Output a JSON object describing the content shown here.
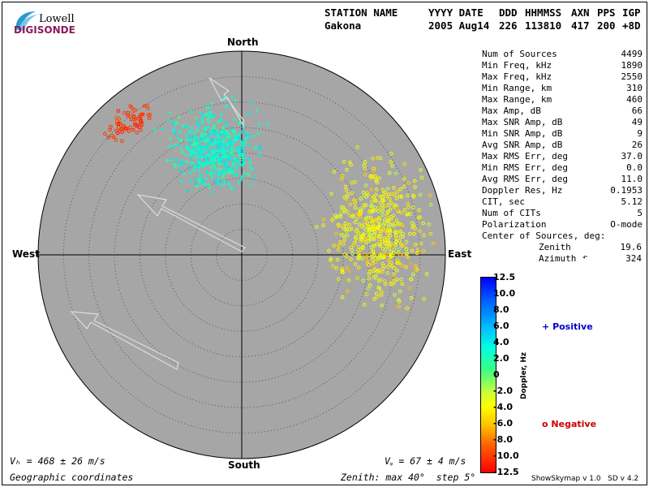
{
  "logo": {
    "top": "Lowell",
    "bottom": "DIGISONDE"
  },
  "header": {
    "labels": [
      "STATION NAME",
      "YYYY DATE",
      "DDD",
      "HHMMSS",
      "AXN",
      "PPS",
      "IGP"
    ],
    "values": [
      "Gakona",
      "2005 Aug14",
      "226",
      "113810",
      "417",
      "200",
      "+8D"
    ]
  },
  "compass": {
    "north": "North",
    "south": "South",
    "east": "East",
    "west": "West"
  },
  "stats": [
    {
      "label": "Num of Sources",
      "value": "4499"
    },
    {
      "label": "Min Freq, kHz",
      "value": "1890"
    },
    {
      "label": "Max Freq, kHz",
      "value": "2550"
    },
    {
      "label": "Min Range, km",
      "value": "310"
    },
    {
      "label": "Max Range, km",
      "value": "460"
    },
    {
      "label": "Max Amp, dB",
      "value": "66"
    },
    {
      "label": "Max SNR Amp, dB",
      "value": "49"
    },
    {
      "label": "Min SNR Amp, dB",
      "value": "9"
    },
    {
      "label": "Avg SNR Amp, dB",
      "value": "26"
    },
    {
      "label": "Max RMS Err, deg",
      "value": "37.0"
    },
    {
      "label": "Min RMS Err, deg",
      "value": "0.0"
    },
    {
      "label": "Avg RMS Err, deg",
      "value": "11.0"
    },
    {
      "label": "Doppler Res, Hz",
      "value": "0.1953"
    },
    {
      "label": "CIT, sec",
      "value": "5.12"
    },
    {
      "label": "Num of CITs",
      "value": "5"
    },
    {
      "label": "Polarization",
      "value": "O-mode"
    }
  ],
  "center": {
    "title": "Center of Sources, deg:",
    "zenith_label": "Zenith",
    "zenith_value": "19.6",
    "azimuth_label": "Azimuth",
    "azimuth_value": "324"
  },
  "colorbar": {
    "ticks": [
      "12.5",
      "10.0",
      "8.0",
      "6.0",
      "4.0",
      "2.0",
      "0",
      "-2.0",
      "-4.0",
      "-6.0",
      "-8.0",
      "-10.0",
      "-12.5"
    ],
    "axis_label": "Doppler, Hz"
  },
  "legend": {
    "positive_symbol": "+",
    "positive_label": "Positive",
    "negative_symbol": "o",
    "negative_label": "Negative",
    "positive_color": "#0000cc",
    "negative_color": "#cc0000"
  },
  "footer": {
    "vh": "Vₕ = 468 ± 26 m/s",
    "vz": "Vᵩ = 67 ± 4 m/s",
    "coords": "Geographic coordinates",
    "zenith_info": "Zenith: max 40°  step 5°",
    "credit": "ShowSkymap v 1.0   SD v 4.2"
  },
  "colors": {
    "background": "#a6a6a6",
    "grid": "#555555"
  },
  "chart_data": {
    "type": "scatter",
    "projection": "polar sky map",
    "zenith_max_deg": 40,
    "zenith_step_deg": 5,
    "series": [
      {
        "name": "Positive",
        "marker": "+",
        "doppler_range_hz": [
          0,
          12.5
        ]
      },
      {
        "name": "Negative",
        "marker": "o",
        "doppler_range_hz": [
          -12.5,
          0
        ]
      }
    ],
    "clusters": [
      {
        "desc": "north-west red sources",
        "zenith_center": 34,
        "azimuth_center": 320,
        "doppler": -10
      },
      {
        "desc": "north cyan sources",
        "zenith_center": 22,
        "azimuth_center": 345,
        "doppler": 3
      },
      {
        "desc": "east yellow/green sources",
        "zenith_center": 28,
        "azimuth_center": 80,
        "doppler": -3
      }
    ],
    "velocity": {
      "horizontal_mps": 468,
      "horizontal_err_mps": 26,
      "vertical_mps": 67,
      "vertical_err_mps": 4
    }
  }
}
